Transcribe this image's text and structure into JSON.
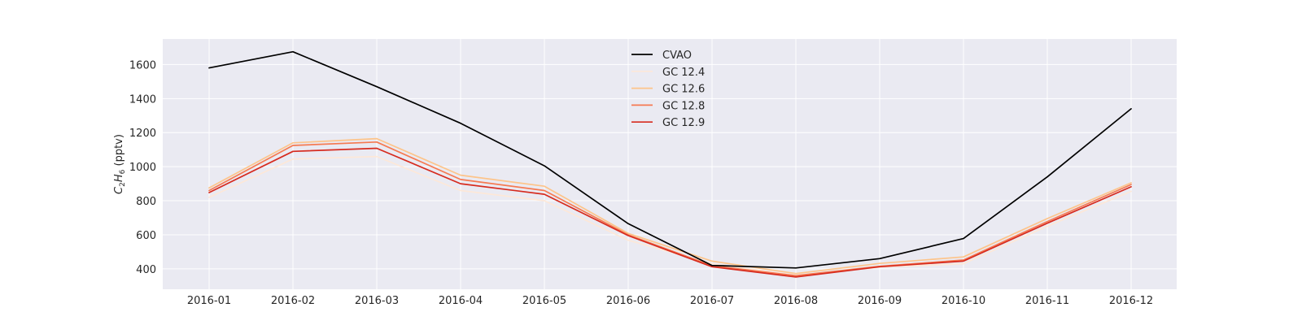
{
  "chart_data": {
    "type": "line",
    "title": "",
    "xlabel": "",
    "ylabel": "C2H6 (pptv)",
    "ylabel_parts": {
      "main": "C",
      "sub1": "2",
      "mid": "H",
      "sub2": "6",
      "rest": " (pptv)"
    },
    "categories": [
      "2016-01",
      "2016-02",
      "2016-03",
      "2016-04",
      "2016-05",
      "2016-06",
      "2016-07",
      "2016-08",
      "2016-09",
      "2016-10",
      "2016-11",
      "2016-12"
    ],
    "yticks": [
      400,
      600,
      800,
      1000,
      1200,
      1400,
      1600
    ],
    "ylim": [
      280,
      1750
    ],
    "grid": true,
    "legend_position": "top-center",
    "background": "#eaeaf2",
    "series": [
      {
        "name": "CVAO",
        "color": "#000000",
        "values": [
          1580,
          1675,
          1470,
          1255,
          1005,
          665,
          420,
          405,
          460,
          578,
          940,
          1340
        ]
      },
      {
        "name": "GC 12.4",
        "color": "#fde8d8",
        "values": [
          820,
          1045,
          1060,
          860,
          800,
          568,
          430,
          362,
          410,
          430,
          650,
          855
        ]
      },
      {
        "name": "GC 12.6",
        "color": "#fdc48a",
        "values": [
          875,
          1140,
          1165,
          950,
          885,
          608,
          445,
          372,
          432,
          470,
          695,
          905
        ]
      },
      {
        "name": "GC 12.8",
        "color": "#f57a52",
        "values": [
          860,
          1125,
          1145,
          925,
          860,
          600,
          418,
          360,
          415,
          452,
          678,
          895
        ]
      },
      {
        "name": "GC 12.9",
        "color": "#d62b1f",
        "values": [
          848,
          1090,
          1108,
          900,
          838,
          595,
          412,
          352,
          412,
          445,
          668,
          882
        ]
      }
    ]
  }
}
